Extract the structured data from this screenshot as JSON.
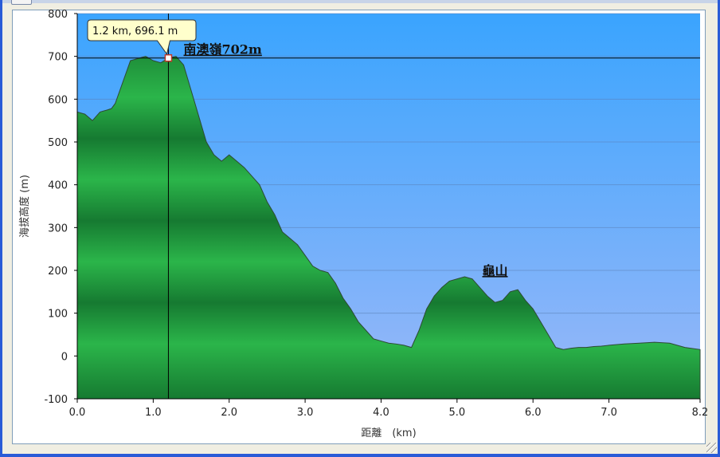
{
  "colors": {
    "sky_top": "#3aa4fe",
    "sky_bottom": "#9ab8f8",
    "terrain_light": "#2bb54a",
    "terrain_dark": "#167a31",
    "tooltip_bg": "#ffffcc",
    "window_frame": "#2a5bd7"
  },
  "chart_data": {
    "type": "area",
    "xlabel": "距離　(km)",
    "ylabel": "海拔高度 (m)",
    "xlim": [
      0,
      8.2
    ],
    "ylim": [
      -100,
      800
    ],
    "xticks": [
      "0.0",
      "1.0",
      "2.0",
      "3.0",
      "4.0",
      "5.0",
      "6.0",
      "7.0",
      "8.2"
    ],
    "yticks": [
      "800",
      "700",
      "600",
      "500",
      "400",
      "300",
      "200",
      "100",
      "0",
      "-100"
    ],
    "grid": true,
    "series": [
      {
        "x": [
          0,
          0.1,
          0.2,
          0.3,
          0.4,
          0.45,
          0.5,
          0.6,
          0.7,
          0.8,
          0.9,
          1.0,
          1.1,
          1.2,
          1.3,
          1.4,
          1.5,
          1.6,
          1.7,
          1.8,
          1.9,
          2.0,
          2.1,
          2.2,
          2.3,
          2.4,
          2.5,
          2.6,
          2.7,
          2.8,
          2.9,
          3.0,
          3.1,
          3.2,
          3.3,
          3.4,
          3.5,
          3.6,
          3.7,
          3.8,
          3.9,
          4.0,
          4.1,
          4.2,
          4.3,
          4.4,
          4.5,
          4.6,
          4.7,
          4.8,
          4.9,
          5.0,
          5.1,
          5.2,
          5.3,
          5.4,
          5.5,
          5.6,
          5.7,
          5.8,
          5.9,
          6.0,
          6.1,
          6.2,
          6.3,
          6.4,
          6.5,
          6.6,
          6.7,
          6.8,
          6.9,
          7.0,
          7.2,
          7.4,
          7.6,
          7.8,
          8.0,
          8.2
        ],
        "values": [
          570,
          565,
          550,
          570,
          575,
          578,
          590,
          640,
          690,
          695,
          700,
          690,
          685,
          696,
          700,
          680,
          620,
          560,
          500,
          470,
          455,
          470,
          455,
          440,
          420,
          400,
          360,
          330,
          290,
          275,
          260,
          235,
          210,
          200,
          195,
          170,
          135,
          110,
          80,
          60,
          40,
          35,
          30,
          28,
          25,
          20,
          60,
          110,
          140,
          160,
          175,
          180,
          185,
          180,
          160,
          140,
          125,
          130,
          150,
          155,
          130,
          110,
          80,
          50,
          20,
          15,
          18,
          20,
          20,
          22,
          23,
          25,
          28,
          30,
          32,
          30,
          20,
          15
        ]
      }
    ],
    "annotations": [
      {
        "text": "南澳嶺702m",
        "x": 1.4,
        "y": 702
      },
      {
        "text": "龜山",
        "x": 5.5,
        "y": 185
      }
    ],
    "cursor": {
      "x": 1.2,
      "y": 696.1,
      "label": "1.2 km, 696.1 m"
    }
  }
}
